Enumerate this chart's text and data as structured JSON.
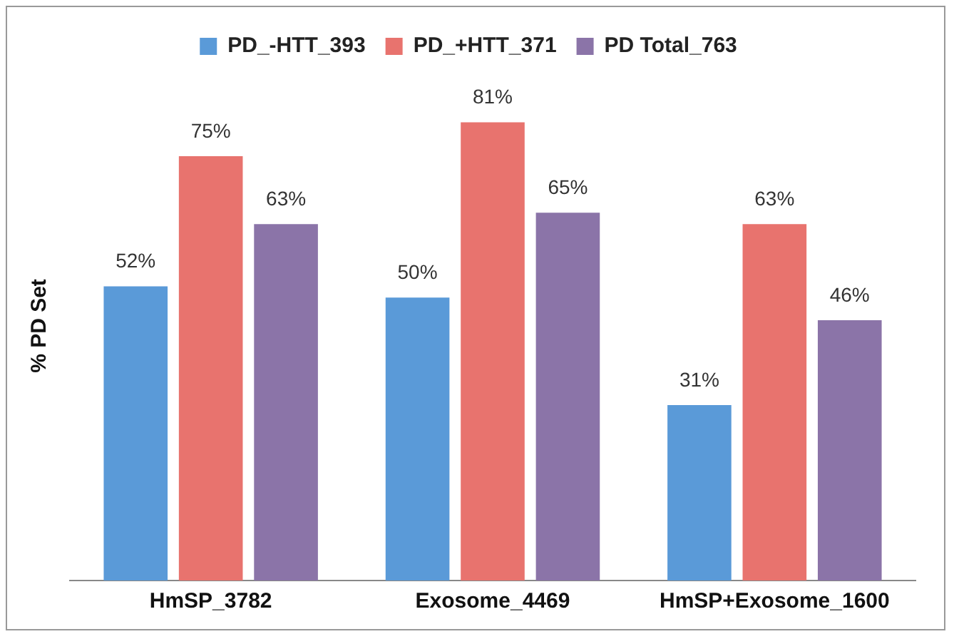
{
  "chart_data": {
    "type": "bar",
    "ylabel": "% PD Set",
    "categories": [
      "HmSP_3782",
      "Exosome_4469",
      "HmSP+Exosome_1600"
    ],
    "series": [
      {
        "name": "PD_-HTT_393",
        "color": "#5a9ad8",
        "values": [
          52,
          50,
          31
        ],
        "value_labels": [
          "52%",
          "50%",
          "31%"
        ]
      },
      {
        "name": "PD_+HTT_371",
        "color": "#e8736e",
        "values": [
          75,
          81,
          63
        ],
        "value_labels": [
          "75%",
          "81%",
          "63%"
        ]
      },
      {
        "name": "PD Total_763",
        "color": "#8b74a8",
        "values": [
          63,
          65,
          46
        ],
        "value_labels": [
          "63%",
          "65%",
          "46%"
        ]
      }
    ],
    "legend": "top",
    "grid": false,
    "tick_labels": "x"
  }
}
